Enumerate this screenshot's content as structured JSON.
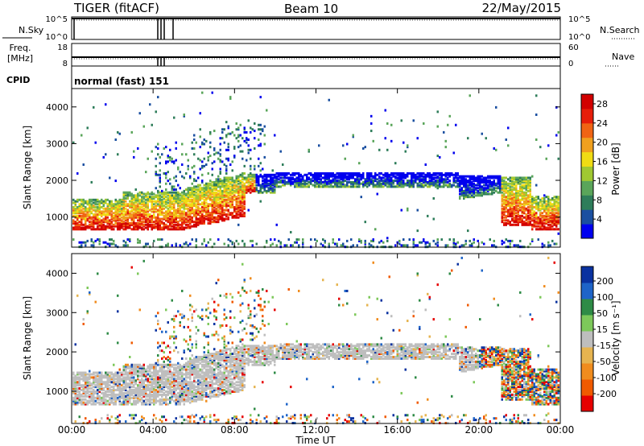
{
  "header": {
    "station": "TIGER (fitACF)",
    "beam": "Beam 10",
    "date": "22/May/2015"
  },
  "strips": {
    "nsky": {
      "label": "N.Sky",
      "ticks": [
        "10^5",
        "10^0"
      ]
    },
    "nsearch": {
      "label": "N.Search",
      "ticks": [
        "10^5",
        "10^0"
      ]
    },
    "freq": {
      "label_line1": "Freq.",
      "label_line2": "[MHz]",
      "ticks": [
        "18",
        "8"
      ]
    },
    "nave": {
      "label": "Nave",
      "ticks": [
        "60",
        "0"
      ]
    },
    "cpid": {
      "label": "CPID",
      "value": "normal (fast) 151"
    }
  },
  "colors": {
    "power": [
      "#0000ee",
      "#1a4fa0",
      "#2e7d5a",
      "#5aa55a",
      "#a0c832",
      "#f0dc14",
      "#f0a01e",
      "#f06414",
      "#e61e0a",
      "#d20000"
    ],
    "velocity": [
      "#e60000",
      "#f05a00",
      "#f08c1e",
      "#e6b450",
      "#bebebe",
      "#7dc85a",
      "#2e8b46",
      "#1e64c8",
      "#0a32a0"
    ],
    "ground_scatter": "#bebebe"
  },
  "chart_data": [
    {
      "type": "heatmap",
      "name": "power",
      "title": "",
      "xlabel": "",
      "ylabel": "Slant Range [km]",
      "xlim_hours": [
        0,
        24
      ],
      "ylim_km": [
        180,
        4500
      ],
      "y_ticks": [
        "1000",
        "2000",
        "3000",
        "4000"
      ],
      "colorbar": {
        "label": "Power [dB]",
        "ticks": [
          "4",
          "8",
          "12",
          "16",
          "20",
          "24",
          "28"
        ],
        "range": [
          0,
          30
        ]
      },
      "grid": false
    },
    {
      "type": "heatmap",
      "name": "velocity",
      "title": "",
      "xlabel": "Time UT",
      "ylabel": "Slant Range [km]",
      "xlim_hours": [
        0,
        24
      ],
      "ylim_km": [
        180,
        4500
      ],
      "x_ticks": [
        "00:00",
        "04:00",
        "08:00",
        "12:00",
        "16:00",
        "20:00",
        "00:00"
      ],
      "y_ticks": [
        "1000",
        "2000",
        "3000",
        "4000"
      ],
      "colorbar": {
        "label": "Velocity [m s⁻¹]",
        "ticks": [
          "200",
          "100",
          "50",
          "15",
          "-15",
          "-50",
          "-100",
          "-200"
        ]
      },
      "grid": false
    }
  ]
}
